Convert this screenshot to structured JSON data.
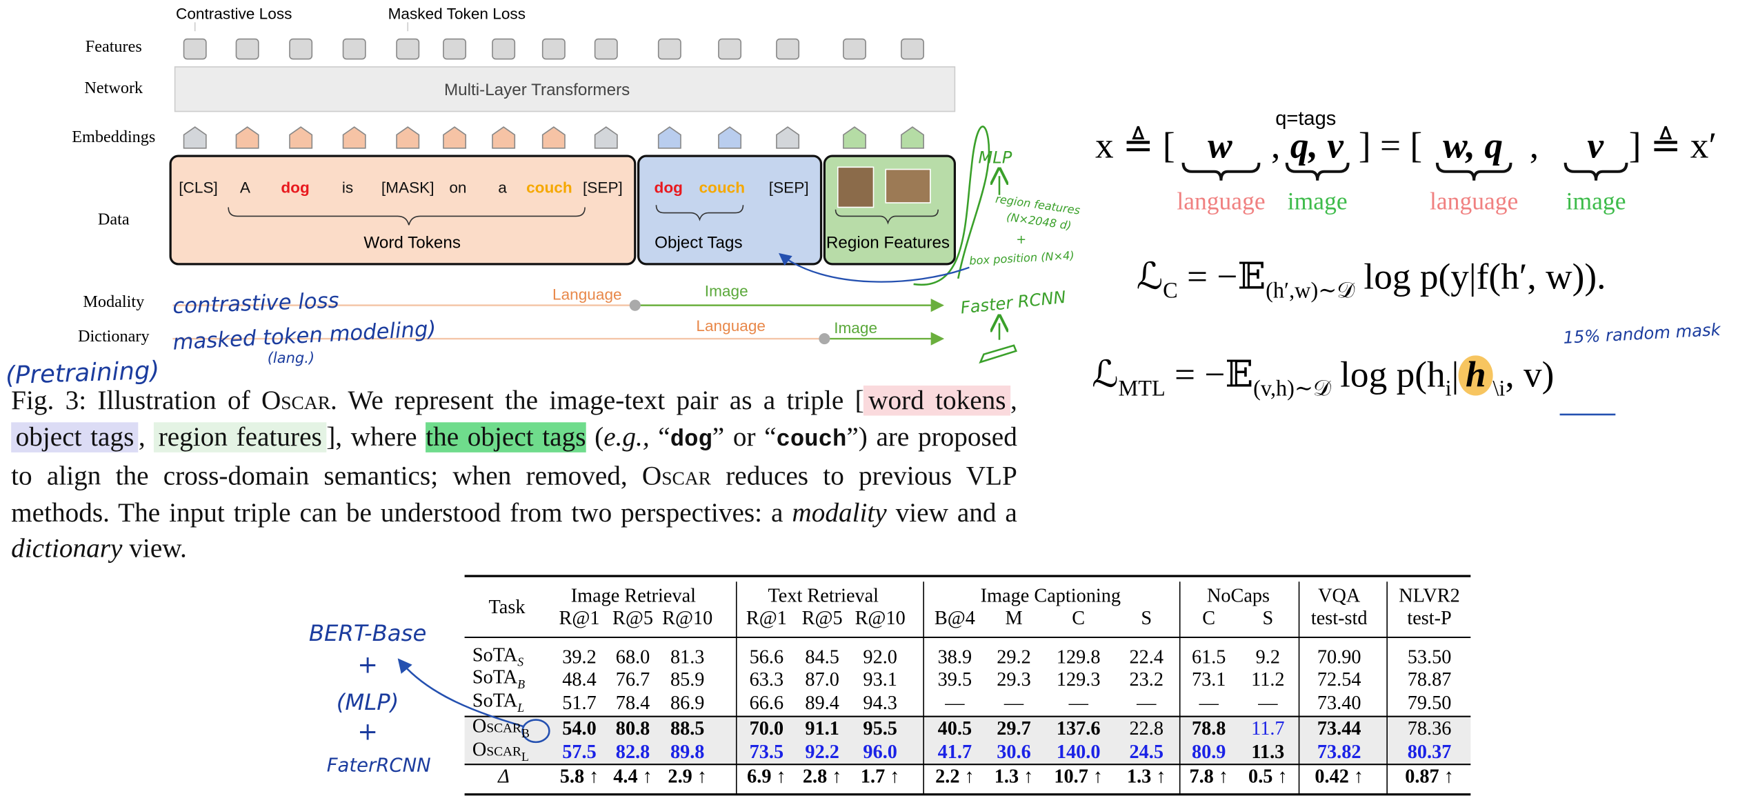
{
  "figure": {
    "losses": [
      "Contrastive Loss",
      "Masked Token Loss"
    ],
    "row_labels": [
      "Features",
      "Network",
      "Embeddings",
      "Data",
      "Modality",
      "Dictionary"
    ],
    "network": "Multi-Layer Transformers",
    "word_tokens": [
      "[CLS]",
      "A",
      "dog",
      "is",
      "[MASK]",
      "on",
      "a",
      "couch",
      "[SEP]"
    ],
    "word_tokens_label": "Word Tokens",
    "object_tags": [
      "dog",
      "couch",
      "[SEP]"
    ],
    "object_tags_label": "Object Tags",
    "region_features_label": "Region Features",
    "modality": {
      "language": "Language",
      "image": "Image"
    },
    "dictionary": {
      "language": "Language",
      "image": "Image"
    }
  },
  "equations": {
    "tag_note": "q=tags",
    "eq1": [
      "x ≜ [",
      "w",
      ",",
      "q, v",
      "] = [",
      "w, q",
      ",",
      "v",
      "] ≜ x′"
    ],
    "eq1_labels": [
      "language",
      "image",
      "language",
      "image"
    ],
    "lc": [
      "ℒ",
      {
        "sub": "C"
      },
      " = −𝔼",
      {
        "sub": "(h′,w)∼𝒟"
      },
      " log p(y|f(h′, w))."
    ],
    "lmtl": [
      "ℒ",
      {
        "sub": "MTL"
      },
      " = −𝔼",
      {
        "sub": "(v,h)∼𝒟"
      },
      " log p(h",
      {
        "sub": "i"
      },
      "|",
      {
        "hl": "h"
      },
      {
        "sub": "\\i"
      },
      ", v)"
    ]
  },
  "caption": [
    "Fig. 3: Illustration of ",
    "Oscar",
    ". We represent the image-text pair as a triple [",
    "word tokens",
    ", ",
    "object tags",
    ", ",
    "region features",
    "], where ",
    "the object tags",
    " (",
    "e.g.,",
    " “",
    "dog",
    "” or “",
    "couch",
    "”) are proposed to align the cross-domain semantics; when removed, ",
    "Oscar",
    " reduces to previous VLP methods. The input triple can be understood from two perspectives: a ",
    "modality",
    " view and a ",
    "dictionary",
    " view."
  ],
  "table": {
    "task_header": "Task",
    "groups": [
      {
        "name": "Image Retrieval",
        "columns": [
          "R@1",
          "R@5",
          "R@10"
        ]
      },
      {
        "name": "Text Retrieval",
        "columns": [
          "R@1",
          "R@5",
          "R@10"
        ]
      },
      {
        "name": "Image Captioning",
        "columns": [
          "B@4",
          "M",
          "C",
          "S"
        ]
      },
      {
        "name": "NoCaps",
        "columns": [
          "C",
          "S"
        ]
      },
      {
        "name": "VQA",
        "columns": [
          "test-std"
        ]
      },
      {
        "name": "NLVR2",
        "columns": [
          "test-P"
        ]
      }
    ],
    "rows": [
      {
        "label": "SoTA",
        "sub": "S",
        "cells": [
          "39.2",
          "68.0",
          "81.3",
          "56.6",
          "84.5",
          "92.0",
          "38.9",
          "29.2",
          "129.8",
          "22.4",
          "61.5",
          "9.2",
          "70.90",
          "53.50"
        ]
      },
      {
        "label": "SoTA",
        "sub": "B",
        "cells": [
          "48.4",
          "76.7",
          "85.9",
          "63.3",
          "87.0",
          "93.1",
          "39.5",
          "29.3",
          "129.3",
          "23.2",
          "73.1",
          "11.2",
          "72.54",
          "78.87"
        ]
      },
      {
        "label": "SoTA",
        "sub": "L",
        "cells": [
          "51.7",
          "78.4",
          "86.9",
          "66.6",
          "89.4",
          "94.3",
          "—",
          "—",
          "—",
          "—",
          "—",
          "—",
          "73.40",
          "79.50"
        ]
      },
      {
        "label": "Oscar",
        "sub": "B",
        "cells": [
          "54.0",
          "80.8",
          "88.5",
          "70.0",
          "91.1",
          "95.5",
          "40.5",
          "29.7",
          "137.6",
          "22.8",
          "78.8",
          "11.7",
          "73.44",
          "78.36"
        ]
      },
      {
        "label": "Oscar",
        "sub": "L",
        "cells": [
          "57.5",
          "82.8",
          "89.8",
          "73.5",
          "92.2",
          "96.0",
          "41.7",
          "30.6",
          "140.0",
          "24.5",
          "80.9",
          "11.3",
          "73.82",
          "80.37"
        ]
      },
      {
        "label": "Δ",
        "cells": [
          "5.8 ↑",
          "4.4 ↑",
          "2.9 ↑",
          "6.9 ↑",
          "2.8 ↑",
          "1.7 ↑",
          "2.2 ↑",
          "1.3 ↑",
          "10.7 ↑",
          "1.3 ↑",
          "7.8 ↑",
          "0.5 ↑",
          "0.42 ↑",
          "0.87 ↑"
        ]
      }
    ]
  },
  "annotations": {
    "contrastive": "contrastive loss",
    "masked": "masked token modeling)",
    "lang": "(lang.)",
    "pretraining": "(Pretraining)",
    "mlp": "MLP",
    "region_features": "region features",
    "region_dims": "(N×2048 d)",
    "plus": "+",
    "box_position": "box position (N×4)",
    "faster_rcnn": "Faster RCNN",
    "random_mask": "15% random mask",
    "model_stack": [
      "BERT-Base",
      "+",
      "(MLP)",
      "+",
      "FaterRCNN"
    ]
  }
}
